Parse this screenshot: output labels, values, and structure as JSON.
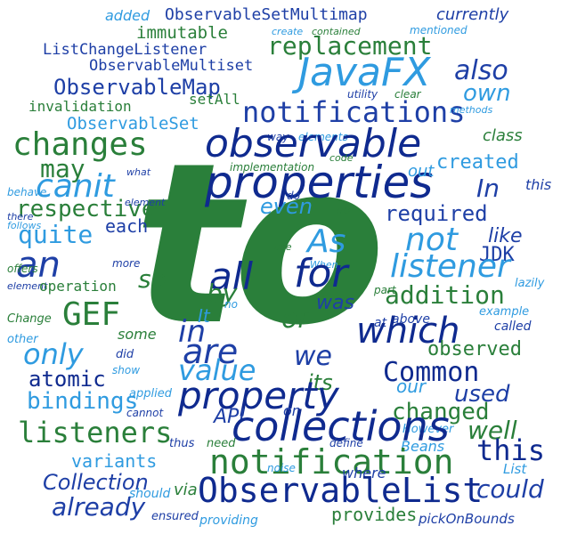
{
  "words": {
    "to": "to",
    "properties": "properties",
    "observable": "observable",
    "JavaFX": "JavaFX",
    "collections": "collections",
    "notification": "notification",
    "ObservableList": "ObservableList",
    "listeners": "listeners",
    "notifications": "notifications",
    "changes": "changes",
    "replacement": "replacement",
    "property": "property",
    "which": "which",
    "addition": "addition",
    "listener": "listener",
    "not": "not",
    "for": "for",
    "all": "all",
    "are": "are",
    "value": "value",
    "Common": "Common",
    "canit": "canit",
    "an": "an",
    "GEF": "GEF",
    "in": "in",
    "atomic": "atomic",
    "bindings": "bindings",
    "only": "only",
    "observed": "observed",
    "changed": "changed",
    "required": "required",
    "respective": "respective",
    "also": "also",
    "own": "own",
    "In": "In",
    "this": "this",
    "may": "may",
    "As": "As",
    "ObservableMap": "ObservableMap",
    "ObservableSetMultimap": "ObservableSetMultimap",
    "ObservableMultiset": "ObservableMultiset",
    "ObservableSet": "ObservableSet",
    "ListChangeListener": "ListChangeListener",
    "immutable": "immutable",
    "added": "added",
    "currently": "currently",
    "invalidation": "invalidation",
    "setAll": "setAll",
    "created": "created",
    "class": "class",
    "even": "even",
    "quite": "quite",
    "each": "each",
    "like": "like",
    "JDK": "JDK",
    "well": "well",
    "used": "used",
    "could": "could",
    "already": "already",
    "Collection": "Collection",
    "variants": "variants",
    "provides": "provides",
    "providing": "providing",
    "pickOnBounds": "pickOnBounds",
    "Beans": "Beans",
    "API": "API",
    "its": "its",
    "our": "our",
    "we": "we",
    "by": "by",
    "It": "It",
    "or": "or",
    "was": "was",
    "so": "so",
    "out": "out",
    "elements": "elements",
    "way": "way",
    "code": "code",
    "implementation": "implementation",
    "mentioned": "mentioned",
    "contained": "contained",
    "utility": "utility",
    "clear": "clear",
    "methods": "methods",
    "create": "create",
    "what": "what",
    "behave": "behave",
    "element": "element",
    "there": "there",
    "follows": "follows",
    "offers": "offers",
    "more": "more",
    "operation": "operation",
    "Change": "Change",
    "other": "other",
    "some": "some",
    "did": "did",
    "show": "show",
    "applied": "applied",
    "cannot": "cannot",
    "thus": "thus",
    "should": "should",
    "ensured": "ensured",
    "via": "via",
    "need": "need",
    "noise": "noise",
    "define": "define",
    "where": "where",
    "However": "However",
    "List": "List",
    "on": "on",
    "at": "at",
    "above": "above",
    "example": "example",
    "called": "called",
    "lazily": "lazily",
    "part": "part",
    "When": "When",
    "use": "use",
    "up": "up",
    "do": "do",
    "no": "no"
  },
  "colors": {
    "green": "#2a7f3a",
    "navy": "#1e3fa6",
    "light_blue": "#2f9be0",
    "dark_blue": "#0f2a8f"
  }
}
